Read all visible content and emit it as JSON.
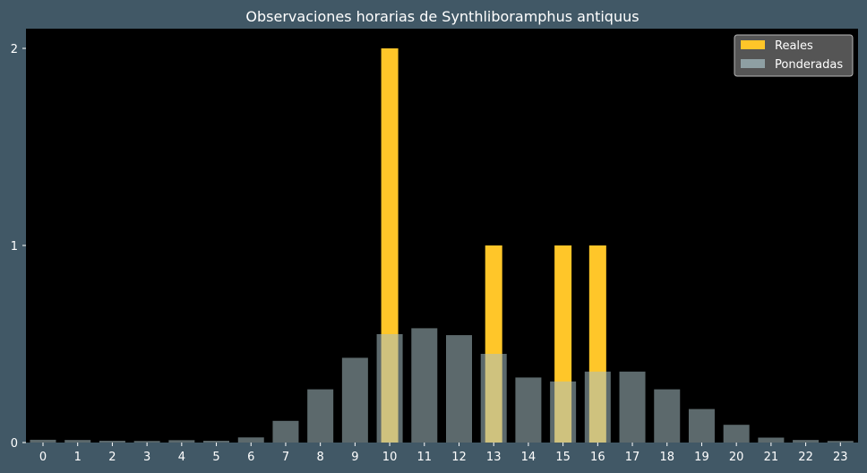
{
  "chart_data": {
    "type": "bar",
    "title": "Observaciones horarias de Synthliboramphus antiquus",
    "xlabel": "",
    "ylabel": "",
    "categories": [
      "0",
      "1",
      "2",
      "3",
      "4",
      "5",
      "6",
      "7",
      "8",
      "9",
      "10",
      "11",
      "12",
      "13",
      "14",
      "15",
      "16",
      "17",
      "18",
      "19",
      "20",
      "21",
      "22",
      "23"
    ],
    "ylim": [
      0,
      2.1
    ],
    "yticks": [
      "0",
      "1",
      "2"
    ],
    "grid": false,
    "legend_position": "top-right",
    "series": [
      {
        "name": "Reales",
        "color": "#ffc629",
        "values": [
          0,
          0,
          0,
          0,
          0,
          0,
          0,
          0,
          0,
          0,
          2,
          0,
          0,
          1,
          0,
          1,
          1,
          0,
          0,
          0,
          0,
          0,
          0,
          0
        ]
      },
      {
        "name": "Ponderadas",
        "color": "#a7bfc4",
        "values": [
          0.014,
          0.013,
          0.009,
          0.008,
          0.012,
          0.009,
          0.026,
          0.11,
          0.27,
          0.43,
          0.55,
          0.58,
          0.545,
          0.45,
          0.33,
          0.31,
          0.36,
          0.36,
          0.27,
          0.17,
          0.09,
          0.025,
          0.013,
          0.008
        ]
      }
    ]
  }
}
